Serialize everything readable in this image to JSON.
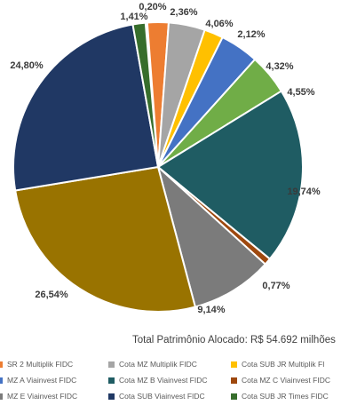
{
  "chart_data": {
    "type": "pie",
    "slices": [
      {
        "value_label": "0,20%",
        "value": 0.2,
        "color": "#9dbd7a",
        "legend": ""
      },
      {
        "value_label": "2,36%",
        "value": 2.36,
        "color": "#ed7d31",
        "legend": "SR 2 Multiplik FIDC"
      },
      {
        "value_label": "4,06%",
        "value": 4.06,
        "color": "#a5a5a5",
        "legend": "Cota MZ  Multiplik FIDC"
      },
      {
        "value_label": "2,12%",
        "value": 2.12,
        "color": "#ffc000",
        "legend": "Cota SUB JR  Multiplik FI"
      },
      {
        "value_label": "4,32%",
        "value": 4.32,
        "color": "#4472c4",
        "legend": "MZ A Viainvest FIDC"
      },
      {
        "value_label": "4,55%",
        "value": 4.55,
        "color": "#70ad47",
        "legend": ""
      },
      {
        "value_label": "19,74%",
        "value": 19.74,
        "color": "#1f5c63",
        "legend": "Cota MZ B Viainvest FIDC"
      },
      {
        "value_label": "0,77%",
        "value": 0.77,
        "color": "#9e480e",
        "legend": "Cota MZ C Viainvest FIDC"
      },
      {
        "value_label": "9,14%",
        "value": 9.14,
        "color": "#7b7b7b",
        "legend": "MZ E Viainvest FIDC"
      },
      {
        "value_label": "26,54%",
        "value": 26.54,
        "color": "#997300",
        "legend": ""
      },
      {
        "value_label": "24,80%",
        "value": 24.8,
        "color": "#203864",
        "legend": "Cota SUB Viainvest FIDC"
      },
      {
        "value_label": "1,41%",
        "value": 1.41,
        "color": "#376e2c",
        "legend": "Cota SUB JR  Times FIDC"
      }
    ],
    "total_label": "Total Patrimônio Alocado: R$ 54.692 milhões"
  }
}
